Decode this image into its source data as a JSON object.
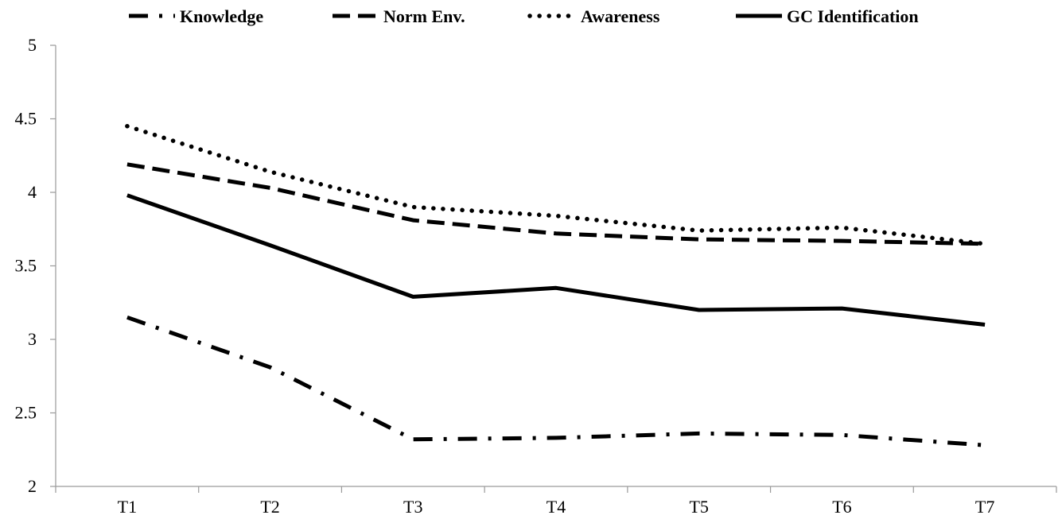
{
  "chart_data": {
    "type": "line",
    "categories": [
      "T1",
      "T2",
      "T3",
      "T4",
      "T5",
      "T6",
      "T7"
    ],
    "ylim": [
      2,
      5
    ],
    "yticks": [
      "2",
      "2.5",
      "3",
      "3.5",
      "4",
      "4.5",
      "5"
    ],
    "grid": false,
    "legend_position": "top",
    "series": [
      {
        "name": "Knowledge",
        "style": "dash-dot",
        "values": [
          3.15,
          2.81,
          2.32,
          2.33,
          2.36,
          2.35,
          2.28
        ]
      },
      {
        "name": "Norm Env.",
        "style": "dashed",
        "values": [
          4.19,
          4.03,
          3.81,
          3.72,
          3.68,
          3.67,
          3.65
        ]
      },
      {
        "name": "Awareness",
        "style": "dotted",
        "values": [
          4.45,
          4.14,
          3.9,
          3.84,
          3.74,
          3.76,
          3.65
        ]
      },
      {
        "name": "GC Identification",
        "style": "solid",
        "values": [
          3.98,
          3.64,
          3.29,
          3.35,
          3.2,
          3.21,
          3.1
        ]
      }
    ],
    "colors": {
      "line": "#000000",
      "axis": "#9a9a9a"
    }
  }
}
